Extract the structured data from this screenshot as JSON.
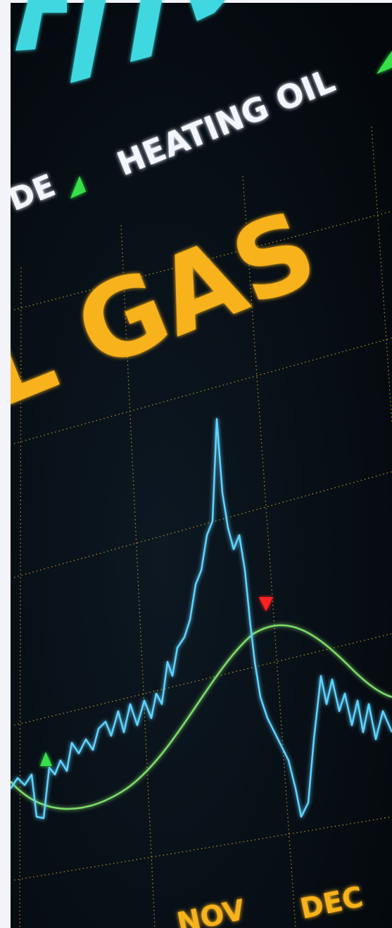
{
  "image": {
    "ticker_left": "DE",
    "ticker_right": "HEATING OIL",
    "headline": "L GAS",
    "month_1": "NOV",
    "month_2": "DEC"
  }
}
